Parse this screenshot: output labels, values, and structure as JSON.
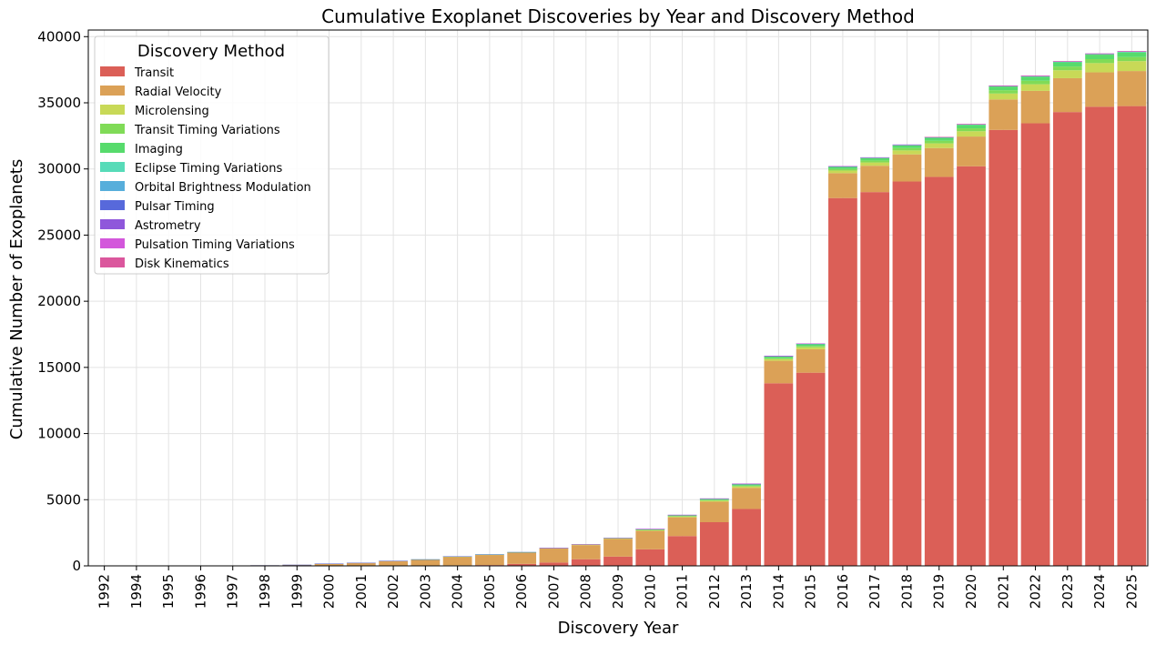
{
  "chart_data": {
    "type": "bar",
    "stacked": true,
    "title": "Cumulative Exoplanet Discoveries by Year and Discovery Method",
    "xlabel": "Discovery Year",
    "ylabel": "Cumulative Number of Exoplanets",
    "ylim": [
      0,
      40500
    ],
    "yticks": [
      0,
      5000,
      10000,
      15000,
      20000,
      25000,
      30000,
      35000,
      40000
    ],
    "grid": true,
    "legend_title": "Discovery Method",
    "legend_position": "upper-left",
    "categories": [
      "1992",
      "1994",
      "1995",
      "1996",
      "1997",
      "1998",
      "1999",
      "2000",
      "2001",
      "2002",
      "2003",
      "2004",
      "2005",
      "2006",
      "2007",
      "2008",
      "2009",
      "2010",
      "2011",
      "2012",
      "2013",
      "2014",
      "2015",
      "2016",
      "2017",
      "2018",
      "2019",
      "2020",
      "2021",
      "2022",
      "2023",
      "2024",
      "2025"
    ],
    "series": [
      {
        "name": "Transit",
        "color": "#db5f57",
        "values": [
          0,
          0,
          0,
          0,
          0,
          0,
          0,
          0,
          0,
          0,
          20,
          40,
          60,
          150,
          250,
          500,
          700,
          1250,
          2250,
          3300,
          4300,
          13800,
          14600,
          27800,
          28250,
          29050,
          29400,
          30200,
          32950,
          33450,
          34300,
          34700,
          34750
        ]
      },
      {
        "name": "Radial Velocity",
        "color": "#dba157",
        "values": [
          0,
          2,
          5,
          10,
          15,
          40,
          80,
          170,
          230,
          380,
          460,
          660,
          780,
          860,
          1060,
          1070,
          1330,
          1410,
          1420,
          1550,
          1600,
          1700,
          1770,
          1880,
          1990,
          2050,
          2180,
          2250,
          2300,
          2450,
          2560,
          2600,
          2650
        ]
      },
      {
        "name": "Microlensing",
        "color": "#c8d957",
        "values": [
          0,
          0,
          0,
          0,
          0,
          0,
          0,
          0,
          0,
          0,
          4,
          6,
          10,
          10,
          20,
          30,
          40,
          50,
          70,
          80,
          100,
          120,
          150,
          200,
          250,
          300,
          350,
          400,
          450,
          500,
          600,
          700,
          750
        ]
      },
      {
        "name": "Transit Timing Variations",
        "color": "#80db57",
        "values": [
          0,
          0,
          0,
          0,
          0,
          0,
          0,
          0,
          0,
          0,
          0,
          0,
          0,
          0,
          0,
          0,
          0,
          10,
          20,
          40,
          60,
          80,
          100,
          120,
          150,
          180,
          200,
          220,
          250,
          270,
          280,
          300,
          310
        ]
      },
      {
        "name": "Imaging",
        "color": "#57db6c",
        "values": [
          0,
          0,
          0,
          0,
          0,
          0,
          0,
          0,
          0,
          0,
          5,
          10,
          15,
          20,
          30,
          40,
          50,
          60,
          80,
          100,
          120,
          140,
          150,
          170,
          190,
          210,
          230,
          260,
          280,
          300,
          320,
          340,
          350
        ]
      },
      {
        "name": "Eclipse Timing Variations",
        "color": "#57dbb8",
        "values": [
          0,
          0,
          0,
          0,
          0,
          0,
          0,
          0,
          0,
          0,
          0,
          0,
          0,
          0,
          0,
          0,
          3,
          5,
          8,
          10,
          12,
          14,
          16,
          18,
          20,
          22,
          24,
          26,
          28,
          30,
          32,
          34,
          35
        ]
      },
      {
        "name": "Orbital Brightness Modulation",
        "color": "#57aedb",
        "values": [
          0,
          0,
          0,
          0,
          0,
          0,
          0,
          0,
          0,
          0,
          0,
          0,
          0,
          0,
          0,
          0,
          0,
          0,
          0,
          5,
          8,
          10,
          12,
          14,
          16,
          18,
          20,
          22,
          24,
          26,
          28,
          30,
          30
        ]
      },
      {
        "name": "Pulsar Timing",
        "color": "#5769db",
        "values": [
          2,
          3,
          3,
          3,
          3,
          4,
          4,
          4,
          4,
          4,
          5,
          5,
          5,
          5,
          5,
          6,
          6,
          7,
          7,
          7,
          8,
          8,
          8,
          9,
          9,
          10,
          10,
          10,
          10,
          11,
          11,
          12,
          12
        ]
      },
      {
        "name": "Astrometry",
        "color": "#8f57db",
        "values": [
          0,
          0,
          0,
          0,
          0,
          0,
          0,
          0,
          0,
          0,
          0,
          0,
          0,
          0,
          0,
          0,
          0,
          1,
          1,
          1,
          1,
          1,
          1,
          1,
          1,
          1,
          1,
          1,
          2,
          2,
          3,
          4,
          5
        ]
      },
      {
        "name": "Pulsation Timing Variations",
        "color": "#d357db",
        "values": [
          0,
          0,
          0,
          0,
          0,
          0,
          0,
          0,
          0,
          0,
          0,
          0,
          0,
          0,
          1,
          1,
          1,
          1,
          2,
          2,
          2,
          2,
          2,
          2,
          2,
          2,
          2,
          2,
          2,
          2,
          2,
          2,
          2
        ]
      },
      {
        "name": "Disk Kinematics",
        "color": "#db579d",
        "values": [
          0,
          0,
          0,
          0,
          0,
          0,
          0,
          0,
          0,
          0,
          0,
          0,
          0,
          0,
          0,
          0,
          0,
          0,
          0,
          0,
          0,
          0,
          0,
          0,
          0,
          0,
          1,
          1,
          1,
          1,
          1,
          1,
          1
        ]
      }
    ]
  }
}
